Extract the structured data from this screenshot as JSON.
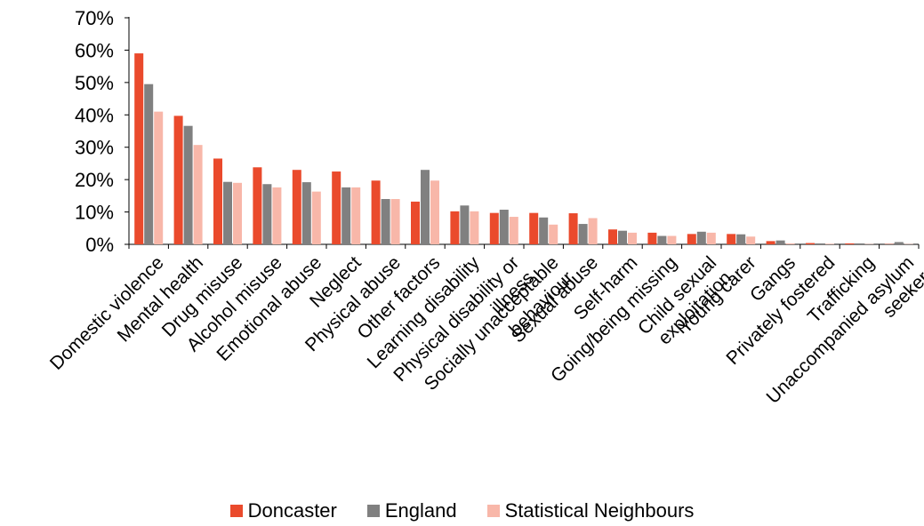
{
  "chart_data": {
    "type": "bar",
    "title": "",
    "xlabel": "",
    "ylabel": "",
    "ylim": [
      0,
      0.7
    ],
    "yticks": [
      "0%",
      "10%",
      "20%",
      "30%",
      "40%",
      "50%",
      "60%",
      "70%"
    ],
    "grid": false,
    "legend_position": "bottom",
    "categories": [
      "Domestic violence",
      "Mental health",
      "Drug misuse",
      "Alcohol misuse",
      "Emotional abuse",
      "Neglect",
      "Physical abuse",
      "Other factors",
      "Learning disability",
      "Physical disability or illness",
      "Socially unacceptable behaviour",
      "Sexual abuse",
      "Self-harm",
      "Going/being missing",
      "Child sexual exploitation",
      "Young carer",
      "Gangs",
      "Privately fostered",
      "Trafficking",
      "Unaccompanied asylum seeker"
    ],
    "series": [
      {
        "name": "Doncaster",
        "color": "#ea4a2c",
        "values": [
          0.59,
          0.397,
          0.265,
          0.238,
          0.23,
          0.225,
          0.197,
          0.132,
          0.102,
          0.097,
          0.097,
          0.096,
          0.046,
          0.036,
          0.032,
          0.032,
          0.01,
          0.004,
          0.003,
          0.001
        ]
      },
      {
        "name": "England",
        "color": "#808080",
        "values": [
          0.495,
          0.366,
          0.193,
          0.186,
          0.192,
          0.176,
          0.14,
          0.23,
          0.12,
          0.107,
          0.083,
          0.063,
          0.042,
          0.026,
          0.039,
          0.031,
          0.012,
          0.003,
          0.003,
          0.007
        ]
      },
      {
        "name": "Statistical Neighbours",
        "color": "#f8b7a9",
        "values": [
          0.41,
          0.307,
          0.19,
          0.176,
          0.163,
          0.176,
          0.14,
          0.197,
          0.102,
          0.085,
          0.061,
          0.081,
          0.036,
          0.026,
          0.036,
          0.024,
          0.003,
          0.002,
          0.001,
          0.001
        ]
      }
    ]
  }
}
